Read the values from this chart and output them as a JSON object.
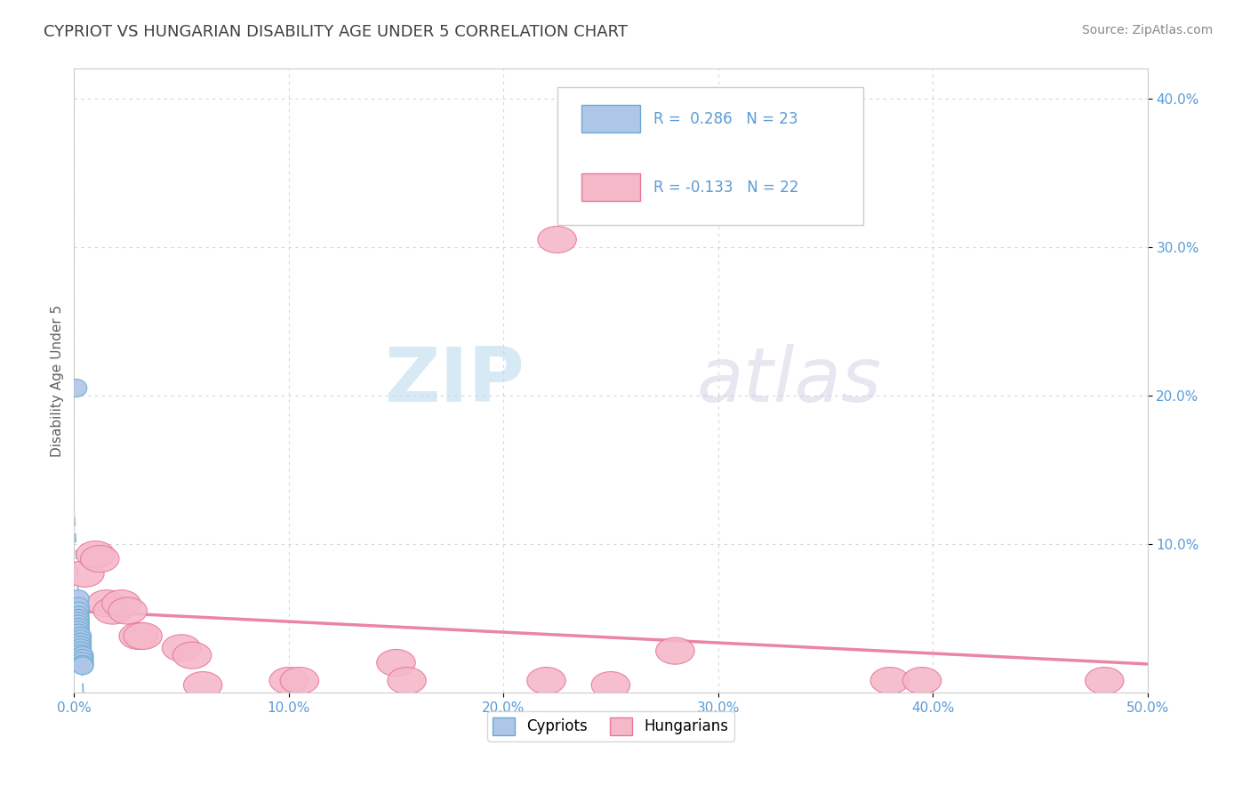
{
  "title": "CYPRIOT VS HUNGARIAN DISABILITY AGE UNDER 5 CORRELATION CHART",
  "source": "Source: ZipAtlas.com",
  "ylabel": "Disability Age Under 5",
  "xlim": [
    0.0,
    0.5
  ],
  "ylim": [
    0.0,
    0.42
  ],
  "xticks": [
    0.0,
    0.1,
    0.2,
    0.3,
    0.4,
    0.5
  ],
  "yticks": [
    0.1,
    0.2,
    0.3,
    0.4
  ],
  "xticklabels": [
    "0.0%",
    "10.0%",
    "20.0%",
    "30.0%",
    "40.0%",
    "50.0%"
  ],
  "yticklabels": [
    "10.0%",
    "20.0%",
    "30.0%",
    "40.0%"
  ],
  "cypriot_color": "#aec6e8",
  "hungarian_color": "#f5b8c8",
  "cypriot_edge_color": "#6aaad4",
  "hungarian_edge_color": "#e8789a",
  "trend_cypriot_color": "#7ab3d8",
  "trend_hungarian_color": "#e8789a",
  "watermark_zip": "ZIP",
  "watermark_atlas": "atlas",
  "R_cypriot": 0.286,
  "N_cypriot": 23,
  "R_hungarian": -0.133,
  "N_hungarian": 22,
  "cypriot_points": [
    [
      0.001,
      0.205
    ],
    [
      0.002,
      0.063
    ],
    [
      0.002,
      0.058
    ],
    [
      0.002,
      0.055
    ],
    [
      0.002,
      0.052
    ],
    [
      0.002,
      0.05
    ],
    [
      0.002,
      0.048
    ],
    [
      0.002,
      0.046
    ],
    [
      0.002,
      0.044
    ],
    [
      0.002,
      0.042
    ],
    [
      0.002,
      0.04
    ],
    [
      0.003,
      0.038
    ],
    [
      0.003,
      0.036
    ],
    [
      0.003,
      0.034
    ],
    [
      0.003,
      0.032
    ],
    [
      0.003,
      0.03
    ],
    [
      0.003,
      0.028
    ],
    [
      0.003,
      0.026
    ],
    [
      0.004,
      0.025
    ],
    [
      0.004,
      0.023
    ],
    [
      0.004,
      0.021
    ],
    [
      0.004,
      0.019
    ],
    [
      0.004,
      0.018
    ]
  ],
  "hungarian_points": [
    [
      0.005,
      0.08
    ],
    [
      0.01,
      0.093
    ],
    [
      0.012,
      0.09
    ],
    [
      0.015,
      0.06
    ],
    [
      0.018,
      0.055
    ],
    [
      0.022,
      0.06
    ],
    [
      0.025,
      0.055
    ],
    [
      0.03,
      0.038
    ],
    [
      0.032,
      0.038
    ],
    [
      0.05,
      0.03
    ],
    [
      0.055,
      0.025
    ],
    [
      0.06,
      0.005
    ],
    [
      0.1,
      0.008
    ],
    [
      0.105,
      0.008
    ],
    [
      0.15,
      0.02
    ],
    [
      0.155,
      0.008
    ],
    [
      0.22,
      0.008
    ],
    [
      0.25,
      0.005
    ],
    [
      0.28,
      0.028
    ],
    [
      0.38,
      0.008
    ],
    [
      0.395,
      0.008
    ],
    [
      0.48,
      0.008
    ]
  ],
  "hungarian_outlier": [
    0.225,
    0.305
  ],
  "background_color": "#ffffff",
  "grid_color": "#cccccc",
  "tick_color": "#5b9bd5",
  "title_color": "#404040",
  "source_color": "#888888",
  "ylabel_color": "#606060"
}
